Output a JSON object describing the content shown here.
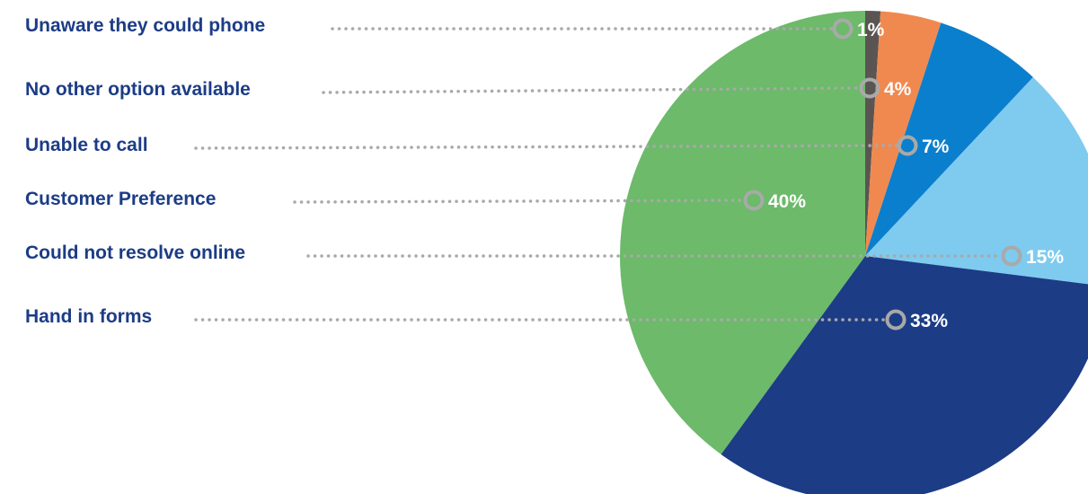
{
  "chart_data": {
    "type": "pie",
    "title": "",
    "categories": [
      "Unaware they could phone",
      "No other option available",
      "Unable to call",
      "Customer Preference",
      "Could not resolve online",
      "Hand in forms"
    ],
    "values": [
      1,
      4,
      7,
      40,
      15,
      33
    ],
    "value_labels": [
      "1%",
      "4%",
      "7%",
      "40%",
      "15%",
      "33%"
    ],
    "slice_order": [
      0,
      1,
      2,
      4,
      5,
      3
    ],
    "colors": [
      "#5a5552",
      "#f0894f",
      "#0a7fcd",
      "#6cba6a",
      "#7fcaef",
      "#1c3c86"
    ],
    "label_color": "#1c3c86",
    "leader_color": "#a9a9a9",
    "marker_color": "#a9a9a9",
    "legend": "left, with dotted leader lines to slices"
  }
}
